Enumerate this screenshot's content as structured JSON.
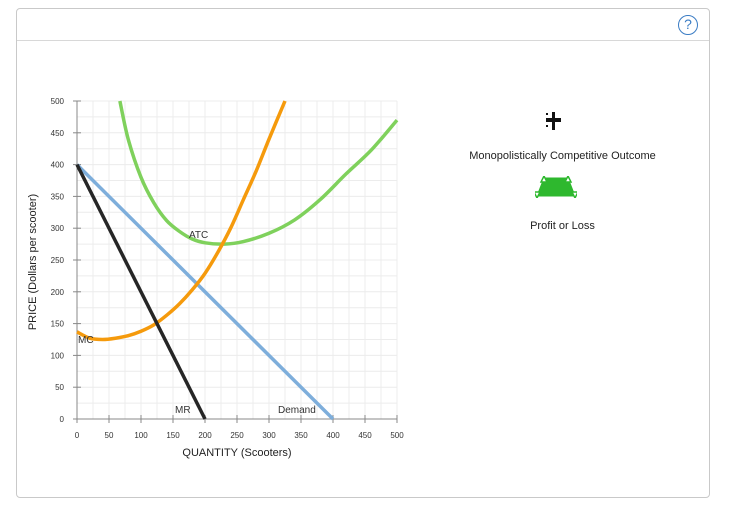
{
  "help_icon": "question-mark-icon",
  "legend": {
    "items": [
      {
        "label": "Monopolistically Competitive Outcome",
        "icon": "point-cross-icon"
      },
      {
        "label": "Profit or Loss",
        "icon": "green-trapezoid-icon",
        "color": "#2eb82e"
      }
    ]
  },
  "chart_data": {
    "type": "line",
    "xlabel": "QUANTITY (Scooters)",
    "ylabel": "PRICE (Dollars per scooter)",
    "xlim": [
      0,
      500
    ],
    "ylim": [
      0,
      500
    ],
    "xticks": [
      0,
      50,
      100,
      150,
      200,
      250,
      300,
      350,
      400,
      450,
      500
    ],
    "yticks": [
      0,
      50,
      100,
      150,
      200,
      250,
      300,
      350,
      400,
      450,
      500
    ],
    "grid": true,
    "series": [
      {
        "name": "ATC",
        "color": "#7fd15c",
        "x": [
          67,
          80,
          100,
          120,
          140,
          160,
          180,
          200,
          230,
          260,
          300,
          340,
          380,
          420,
          460,
          500
        ],
        "y": [
          500,
          440,
          380,
          340,
          312,
          295,
          283,
          277,
          275,
          279,
          292,
          313,
          345,
          385,
          423,
          470
        ]
      },
      {
        "name": "MC",
        "color": "#f59a0c",
        "x": [
          0,
          20,
          40,
          60,
          80,
          100,
          120,
          140,
          160,
          180,
          200,
          220,
          240,
          260,
          280,
          300,
          325
        ],
        "y": [
          137,
          127,
          125,
          127,
          131,
          138,
          148,
          163,
          181,
          203,
          229,
          262,
          300,
          345,
          390,
          440,
          500
        ]
      },
      {
        "name": "Demand",
        "color": "#7eaedb",
        "x": [
          0,
          400
        ],
        "y": [
          400,
          0
        ]
      },
      {
        "name": "MR",
        "color": "#262626",
        "x": [
          0,
          200
        ],
        "y": [
          400,
          0
        ]
      }
    ]
  }
}
